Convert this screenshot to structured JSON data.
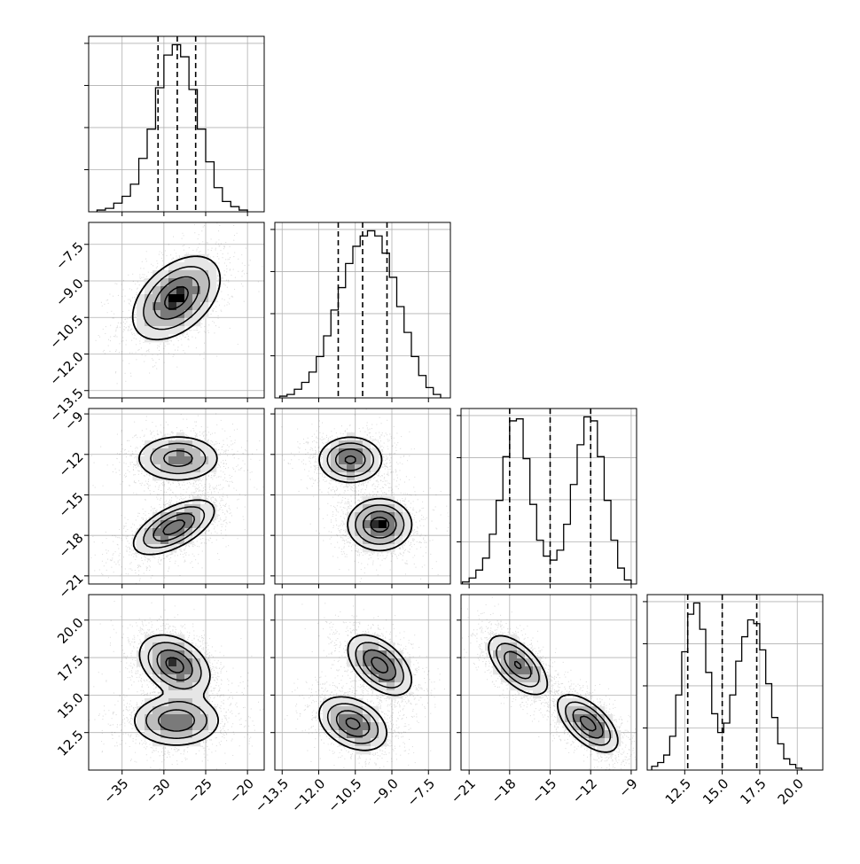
{
  "chart_data": {
    "type": "corner",
    "grid": true,
    "quantile_line_style": "dashed",
    "parameters": [
      {
        "range": [
          -39,
          -18
        ],
        "ticks": [
          "−35",
          "−30",
          "−25",
          "−20"
        ],
        "tick_values": [
          -35,
          -30,
          -25,
          -20
        ],
        "quantiles": [
          -30.7,
          -28.4,
          -26.2
        ],
        "hist_bin_edges": [
          -38,
          -37,
          -36,
          -35,
          -34,
          -33,
          -32,
          -31,
          -30,
          -29,
          -28,
          -27,
          -26,
          -25,
          -24,
          -23,
          -22,
          -21,
          -20
        ],
        "hist_counts": [
          1,
          2,
          5,
          9,
          16,
          31,
          48,
          72,
          91,
          97,
          90,
          71,
          48,
          29,
          14,
          6,
          3,
          1
        ]
      },
      {
        "range": [
          -13.8,
          -6.6
        ],
        "ticks": [
          "−13.5",
          "−12.0",
          "−10.5",
          "−9.0",
          "−7.5"
        ],
        "tick_values": [
          -13.5,
          -12.0,
          -10.5,
          -9.0,
          -7.5
        ],
        "quantiles": [
          -11.2,
          -10.2,
          -9.2
        ],
        "hist_bin_edges": [
          -13.6,
          -13.3,
          -13.0,
          -12.7,
          -12.4,
          -12.1,
          -11.8,
          -11.5,
          -11.2,
          -10.9,
          -10.6,
          -10.3,
          -10.0,
          -9.7,
          -9.4,
          -9.1,
          -8.8,
          -8.5,
          -8.2,
          -7.9,
          -7.6,
          -7.3,
          -7.0
        ],
        "hist_counts": [
          1,
          2,
          5,
          9,
          15,
          24,
          36,
          51,
          64,
          78,
          88,
          94,
          97,
          94,
          84,
          70,
          53,
          38,
          24,
          13,
          6,
          2
        ]
      },
      {
        "range": [
          -21.6,
          -8.6
        ],
        "ticks": [
          "−21",
          "−18",
          "−15",
          "−12",
          "−9"
        ],
        "tick_values": [
          -21,
          -18,
          -15,
          -12,
          -9
        ],
        "quantiles": [
          -18.0,
          -15.0,
          -12.0
        ],
        "hist_bin_edges": [
          -21.5,
          -21.0,
          -20.5,
          -20.0,
          -19.5,
          -19.0,
          -18.5,
          -18.0,
          -17.5,
          -17.0,
          -16.5,
          -16.0,
          -15.5,
          -15.0,
          -14.5,
          -14.0,
          -13.5,
          -13.0,
          -12.5,
          -12.0,
          -11.5,
          -11.0,
          -10.5,
          -10.0,
          -9.5,
          -9.0
        ],
        "hist_counts": [
          1,
          3,
          7,
          13,
          25,
          42,
          64,
          82,
          83,
          63,
          40,
          22,
          14,
          12,
          17,
          30,
          50,
          70,
          84,
          82,
          64,
          42,
          22,
          8,
          2
        ]
      },
      {
        "range": [
          10.0,
          21.7
        ],
        "ticks": [
          "12.5",
          "15.0",
          "17.5",
          "20.0"
        ],
        "tick_values": [
          12.5,
          15.0,
          17.5,
          20.0
        ],
        "quantiles": [
          12.7,
          15.0,
          17.3
        ],
        "hist_bin_edges": [
          10.3,
          10.7,
          11.1,
          11.5,
          11.9,
          12.3,
          12.7,
          13.1,
          13.5,
          13.9,
          14.3,
          14.7,
          15.1,
          15.5,
          15.9,
          16.3,
          16.7,
          17.1,
          17.5,
          17.9,
          18.3,
          18.7,
          19.1,
          19.5,
          19.9,
          20.3
        ],
        "hist_counts": [
          2,
          4,
          8,
          18,
          40,
          63,
          83,
          89,
          75,
          52,
          30,
          20,
          25,
          40,
          58,
          71,
          80,
          78,
          64,
          46,
          28,
          14,
          6,
          3,
          1
        ]
      }
    ],
    "pairs": [
      {
        "x": 0,
        "y": 1,
        "modes": [
          {
            "cx": -28.5,
            "cy": -9.7,
            "sx": 2.6,
            "sy": 0.85,
            "rho": 0.45,
            "peak": 1.0
          }
        ]
      },
      {
        "x": 0,
        "y": 2,
        "modes": [
          {
            "cx": -28.3,
            "cy": -12.3,
            "sx": 2.5,
            "sy": 0.85,
            "rho": 0.0,
            "peak": 0.75
          },
          {
            "cx": -28.8,
            "cy": -17.4,
            "sx": 2.4,
            "sy": 1.0,
            "rho": 0.6,
            "peak": 1.0
          }
        ]
      },
      {
        "x": 1,
        "y": 2,
        "modes": [
          {
            "cx": -10.7,
            "cy": -12.4,
            "sx": 0.65,
            "sy": 0.85,
            "rho": 0.0,
            "peak": 0.9
          },
          {
            "cx": -9.5,
            "cy": -17.2,
            "sx": 0.65,
            "sy": 0.95,
            "rho": 0.0,
            "peak": 1.0
          }
        ]
      },
      {
        "x": 0,
        "y": 3,
        "modes": [
          {
            "cx": -28.7,
            "cy": 17.0,
            "sx": 2.1,
            "sy": 1.0,
            "rho": -0.35,
            "peak": 1.0
          },
          {
            "cx": -28.5,
            "cy": 13.3,
            "sx": 2.6,
            "sy": 0.85,
            "rho": 0.0,
            "peak": 0.85
          }
        ]
      },
      {
        "x": 1,
        "y": 3,
        "modes": [
          {
            "cx": -9.5,
            "cy": 17.0,
            "sx": 0.65,
            "sy": 1.0,
            "rho": -0.5,
            "peak": 1.0
          },
          {
            "cx": -10.6,
            "cy": 13.1,
            "sx": 0.7,
            "sy": 0.9,
            "rho": -0.35,
            "peak": 0.95
          }
        ]
      },
      {
        "x": 2,
        "y": 3,
        "modes": [
          {
            "cx": -17.4,
            "cy": 17.0,
            "sx": 1.1,
            "sy": 1.0,
            "rho": -0.6,
            "peak": 0.9
          },
          {
            "cx": -12.2,
            "cy": 13.1,
            "sx": 1.1,
            "sy": 0.95,
            "rho": -0.6,
            "peak": 1.0
          }
        ]
      }
    ]
  }
}
